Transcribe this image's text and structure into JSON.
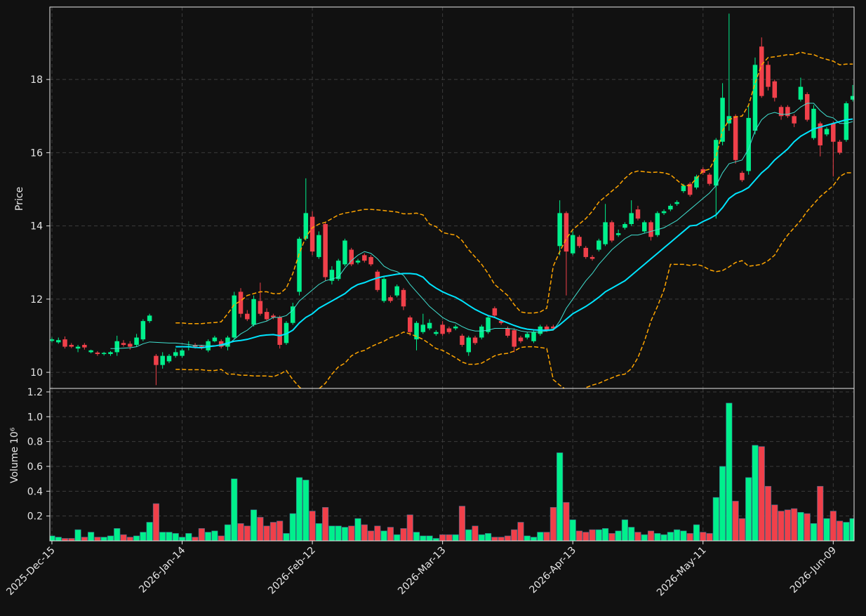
{
  "chart_data": {
    "type": "candlestick",
    "ylabel": "Price",
    "volume_label": "Volume",
    "volume_offset": "10⁶",
    "up_color": "#00f08c",
    "down_color": "#f0404a",
    "grid": true,
    "ylim": [
      9.56,
      19.98
    ],
    "yticks": [
      10,
      12,
      14,
      16,
      18
    ],
    "volume_ylim": [
      0,
      1.228
    ],
    "volume_yticks": [
      0.2,
      0.4,
      0.6,
      0.8,
      {
        "value": 1.0,
        "label": "1.0"
      },
      1.2
    ],
    "xlim": [
      -0.32,
      123.2
    ],
    "categories": [
      "2025-Dec-15",
      null,
      null,
      null,
      null,
      null,
      null,
      null,
      null,
      null,
      null,
      null,
      null,
      null,
      null,
      null,
      null,
      null,
      null,
      null,
      "2026-Jan-14",
      null,
      null,
      null,
      null,
      null,
      null,
      null,
      null,
      null,
      null,
      null,
      null,
      null,
      null,
      null,
      null,
      null,
      null,
      null,
      "2026-Feb-12",
      null,
      null,
      null,
      null,
      null,
      null,
      null,
      null,
      null,
      null,
      null,
      null,
      null,
      null,
      null,
      null,
      null,
      null,
      null,
      "2026-Mar-13",
      null,
      null,
      null,
      null,
      null,
      null,
      null,
      null,
      null,
      null,
      null,
      null,
      null,
      null,
      null,
      null,
      null,
      null,
      null,
      "2026-Apr-13",
      null,
      null,
      null,
      null,
      null,
      null,
      null,
      null,
      null,
      null,
      null,
      null,
      null,
      null,
      null,
      null,
      null,
      null,
      null,
      "2026-May-11",
      null,
      null,
      null,
      null,
      null,
      null,
      null,
      null,
      null,
      null,
      null,
      null,
      null,
      null,
      null,
      null,
      null,
      null,
      null,
      "2026-Jun-09",
      null,
      null,
      null
    ],
    "open": [
      10.86,
      10.82,
      10.9,
      10.75,
      10.65,
      10.75,
      10.55,
      10.54,
      10.5,
      10.5,
      10.55,
      10.8,
      10.78,
      10.75,
      10.9,
      11.4,
      10.45,
      10.2,
      10.3,
      10.45,
      10.45,
      10.68,
      10.75,
      10.72,
      10.6,
      10.85,
      10.85,
      10.7,
      10.95,
      12.2,
      11.6,
      11.3,
      11.95,
      11.65,
      11.55,
      11.5,
      10.8,
      11.35,
      12.2,
      13.65,
      14.25,
      13.15,
      14.05,
      12.5,
      12.55,
      12.95,
      13.35,
      13.0,
      13.2,
      13.15,
      12.75,
      11.95,
      12.05,
      12.1,
      12.25,
      11.5,
      10.9,
      11.1,
      11.2,
      11.05,
      11.3,
      11.2,
      11.2,
      11.0,
      10.55,
      10.95,
      10.95,
      11.1,
      11.75,
      11.4,
      11.2,
      11.15,
      10.95,
      10.95,
      10.85,
      11.05,
      11.25,
      11.25,
      13.45,
      14.35,
      13.25,
      13.7,
      13.4,
      13.15,
      13.35,
      13.5,
      14.1,
      13.75,
      13.95,
      14.05,
      14.45,
      13.85,
      14.1,
      13.75,
      14.35,
      14.45,
      14.6,
      14.95,
      15.15,
      15.05,
      15.55,
      15.4,
      15.1,
      16.3,
      16.8,
      17.0,
      15.45,
      15.5,
      16.6,
      18.9,
      18.4,
      17.95,
      17.25,
      17.25,
      17.0,
      17.45,
      17.6,
      16.4,
      16.8,
      16.5,
      16.8,
      16.3,
      16.35,
      17.45
    ],
    "high": [
      10.95,
      10.95,
      10.98,
      10.8,
      10.75,
      10.8,
      10.62,
      10.58,
      10.56,
      10.58,
      11.0,
      10.88,
      10.85,
      11.05,
      11.45,
      11.6,
      10.5,
      10.55,
      10.5,
      10.65,
      10.65,
      10.85,
      10.8,
      10.75,
      10.9,
      11.0,
      10.9,
      11.0,
      12.2,
      12.3,
      11.7,
      12.1,
      12.45,
      11.75,
      11.6,
      11.55,
      11.4,
      11.9,
      13.7,
      15.3,
      14.4,
      13.85,
      14.1,
      12.9,
      13.1,
      13.65,
      13.4,
      13.1,
      13.25,
      13.2,
      12.8,
      12.6,
      12.1,
      12.4,
      12.3,
      11.55,
      11.4,
      11.6,
      11.45,
      11.15,
      11.4,
      11.25,
      11.3,
      11.05,
      11.0,
      11.0,
      11.3,
      11.55,
      11.8,
      11.45,
      11.25,
      11.2,
      11.0,
      11.1,
      11.15,
      11.3,
      11.3,
      11.3,
      14.7,
      14.4,
      13.85,
      13.75,
      13.45,
      13.2,
      13.65,
      14.6,
      14.15,
      13.9,
      14.1,
      14.7,
      14.55,
      14.15,
      14.15,
      14.4,
      14.45,
      14.6,
      14.7,
      15.15,
      15.2,
      15.4,
      15.6,
      15.45,
      16.4,
      17.9,
      19.8,
      17.05,
      15.5,
      17.3,
      18.6,
      19.15,
      18.5,
      18.0,
      17.3,
      17.3,
      17.05,
      18.05,
      17.65,
      17.3,
      16.85,
      16.7,
      16.85,
      16.35,
      17.4,
      17.85
    ],
    "low": [
      10.82,
      10.78,
      10.65,
      10.66,
      10.55,
      10.62,
      10.52,
      10.45,
      10.46,
      10.45,
      10.45,
      10.7,
      10.62,
      10.7,
      10.85,
      11.35,
      9.65,
      10.1,
      10.25,
      10.4,
      10.4,
      10.6,
      10.65,
      10.62,
      10.55,
      10.82,
      10.65,
      10.6,
      10.9,
      11.5,
      11.4,
      11.25,
      11.55,
      11.4,
      11.45,
      10.65,
      10.75,
      11.3,
      12.1,
      13.6,
      13.2,
      13.1,
      12.5,
      12.4,
      12.5,
      12.9,
      12.9,
      12.95,
      13.0,
      12.9,
      12.2,
      11.9,
      11.9,
      12.05,
      11.7,
      11.0,
      10.6,
      11.05,
      11.15,
      11.0,
      11.0,
      11.05,
      11.15,
      10.7,
      10.45,
      10.75,
      10.9,
      11.05,
      11.5,
      11.3,
      10.95,
      10.55,
      10.8,
      10.9,
      10.8,
      11.0,
      11.1,
      11.15,
      13.2,
      12.1,
      13.2,
      13.4,
      13.1,
      13.05,
      13.3,
      13.45,
      13.55,
      13.7,
      13.9,
      14.0,
      14.15,
      13.8,
      13.6,
      13.7,
      14.3,
      14.4,
      14.55,
      14.9,
      14.8,
      15.0,
      15.4,
      15.1,
      14.2,
      16.2,
      16.6,
      15.7,
      15.2,
      15.4,
      16.5,
      17.5,
      17.7,
      17.4,
      16.9,
      16.95,
      16.7,
      17.4,
      16.85,
      16.35,
      15.9,
      16.45,
      15.35,
      15.95,
      16.3,
      17.4
    ],
    "close": [
      10.9,
      10.88,
      10.7,
      10.7,
      10.7,
      10.68,
      10.6,
      10.5,
      10.53,
      10.55,
      10.85,
      10.75,
      10.7,
      10.95,
      11.4,
      11.55,
      10.2,
      10.45,
      10.45,
      10.55,
      10.6,
      10.72,
      10.7,
      10.68,
      10.85,
      10.95,
      10.7,
      10.95,
      12.1,
      11.6,
      11.45,
      12.0,
      11.6,
      11.45,
      11.5,
      10.75,
      11.35,
      11.8,
      13.65,
      14.35,
      13.3,
      13.75,
      12.6,
      12.8,
      13.05,
      13.6,
      12.95,
      13.05,
      13.05,
      12.95,
      12.25,
      12.55,
      11.95,
      12.35,
      11.8,
      11.1,
      11.35,
      11.3,
      11.35,
      11.1,
      11.05,
      11.1,
      11.25,
      10.75,
      10.95,
      10.8,
      11.25,
      11.5,
      11.55,
      11.35,
      11.0,
      10.7,
      10.85,
      11.05,
      11.1,
      11.25,
      11.15,
      11.2,
      14.35,
      13.3,
      13.75,
      13.45,
      13.15,
      13.1,
      13.6,
      14.1,
      13.6,
      13.8,
      14.05,
      14.35,
      14.2,
      14.1,
      13.7,
      14.35,
      14.4,
      14.55,
      14.65,
      15.1,
      14.85,
      15.35,
      15.45,
      15.15,
      16.35,
      17.5,
      17.0,
      15.8,
      15.25,
      16.95,
      18.4,
      17.55,
      17.8,
      17.5,
      17.0,
      17.0,
      16.8,
      17.8,
      16.9,
      17.2,
      16.2,
      16.65,
      16.3,
      16.0,
      17.35,
      17.55
    ],
    "volume": [
      0.04,
      0.03,
      0.02,
      0.02,
      0.09,
      0.03,
      0.07,
      0.03,
      0.03,
      0.04,
      0.1,
      0.05,
      0.03,
      0.04,
      0.07,
      0.15,
      0.3,
      0.07,
      0.07,
      0.06,
      0.03,
      0.06,
      0.03,
      0.1,
      0.07,
      0.08,
      0.04,
      0.13,
      0.5,
      0.14,
      0.12,
      0.25,
      0.19,
      0.12,
      0.15,
      0.16,
      0.06,
      0.22,
      0.51,
      0.49,
      0.24,
      0.14,
      0.27,
      0.12,
      0.12,
      0.11,
      0.12,
      0.18,
      0.13,
      0.08,
      0.12,
      0.08,
      0.11,
      0.05,
      0.1,
      0.21,
      0.07,
      0.04,
      0.04,
      0.02,
      0.05,
      0.05,
      0.05,
      0.28,
      0.09,
      0.12,
      0.05,
      0.06,
      0.03,
      0.03,
      0.04,
      0.09,
      0.15,
      0.04,
      0.03,
      0.07,
      0.07,
      0.27,
      0.71,
      0.31,
      0.17,
      0.08,
      0.07,
      0.09,
      0.09,
      0.1,
      0.06,
      0.08,
      0.17,
      0.11,
      0.07,
      0.05,
      0.08,
      0.06,
      0.05,
      0.07,
      0.09,
      0.08,
      0.06,
      0.13,
      0.07,
      0.06,
      0.35,
      0.6,
      1.11,
      0.32,
      0.18,
      0.51,
      0.77,
      0.76,
      0.44,
      0.29,
      0.24,
      0.25,
      0.26,
      0.23,
      0.22,
      0.14,
      0.44,
      0.18,
      0.24,
      0.16,
      0.15,
      0.18
    ],
    "lines": [
      {
        "color": "#40e0d0",
        "width": 1,
        "dash": false,
        "values": [
          null,
          null,
          null,
          null,
          null,
          null,
          null,
          null,
          null,
          10.65,
          10.65,
          10.66,
          10.67,
          10.7,
          10.78,
          10.83,
          10.82,
          10.81,
          10.8,
          10.8,
          10.78,
          10.76,
          10.73,
          10.74,
          10.72,
          10.73,
          10.73,
          10.76,
          10.9,
          11.05,
          11.15,
          11.3,
          11.35,
          11.4,
          11.5,
          11.5,
          11.55,
          11.7,
          11.95,
          12.1,
          12.25,
          12.4,
          12.5,
          12.55,
          12.6,
          12.85,
          13.05,
          13.2,
          13.3,
          13.25,
          13.1,
          12.9,
          12.8,
          12.75,
          12.65,
          12.4,
          12.2,
          12.0,
          11.8,
          11.65,
          11.5,
          11.4,
          11.35,
          11.25,
          11.17,
          11.13,
          11.13,
          11.15,
          11.2,
          11.2,
          11.2,
          11.18,
          11.13,
          11.1,
          11.1,
          11.1,
          11.13,
          11.15,
          11.4,
          11.75,
          12.0,
          12.25,
          12.5,
          12.7,
          12.95,
          13.15,
          13.35,
          13.5,
          13.65,
          13.75,
          13.75,
          13.8,
          13.85,
          13.9,
          13.95,
          14.05,
          14.15,
          14.3,
          14.45,
          14.6,
          14.75,
          14.9,
          15.1,
          15.45,
          15.7,
          15.75,
          15.8,
          16.1,
          16.6,
          16.9,
          17.05,
          17.1,
          17.05,
          17.05,
          17.1,
          17.25,
          17.35,
          17.35,
          17.15,
          17.0,
          16.95,
          16.8,
          16.8,
          16.85
        ]
      },
      {
        "color": "#00e5ff",
        "width": 2,
        "dash": false,
        "values": [
          null,
          null,
          null,
          null,
          null,
          null,
          null,
          null,
          null,
          null,
          null,
          null,
          null,
          null,
          null,
          null,
          null,
          null,
          null,
          10.7,
          10.7,
          10.7,
          10.68,
          10.67,
          10.7,
          10.72,
          10.75,
          10.8,
          10.85,
          10.87,
          10.9,
          10.95,
          11.0,
          11.02,
          11.03,
          11.0,
          11.05,
          11.15,
          11.35,
          11.5,
          11.6,
          11.75,
          11.85,
          11.95,
          12.05,
          12.15,
          12.3,
          12.4,
          12.45,
          12.52,
          12.58,
          12.62,
          12.65,
          12.68,
          12.7,
          12.7,
          12.68,
          12.6,
          12.42,
          12.3,
          12.2,
          12.12,
          12.05,
          11.95,
          11.83,
          11.72,
          11.63,
          11.55,
          11.5,
          11.42,
          11.35,
          11.28,
          11.22,
          11.18,
          11.16,
          11.15,
          11.15,
          11.17,
          11.3,
          11.45,
          11.6,
          11.7,
          11.8,
          11.92,
          12.05,
          12.2,
          12.3,
          12.4,
          12.5,
          12.65,
          12.8,
          12.95,
          13.1,
          13.25,
          13.4,
          13.55,
          13.7,
          13.85,
          14.0,
          14.02,
          14.12,
          14.2,
          14.3,
          14.5,
          14.75,
          14.88,
          14.95,
          15.05,
          15.25,
          15.45,
          15.6,
          15.8,
          15.95,
          16.1,
          16.3,
          16.45,
          16.55,
          16.65,
          16.7,
          16.75,
          16.8,
          16.85,
          16.9,
          16.92
        ]
      },
      {
        "color": "#ffa500",
        "width": 1.5,
        "dash": true,
        "values": [
          null,
          null,
          null,
          null,
          null,
          null,
          null,
          null,
          null,
          null,
          null,
          null,
          null,
          null,
          null,
          null,
          null,
          null,
          null,
          11.35,
          11.35,
          11.33,
          11.33,
          11.33,
          11.35,
          11.36,
          11.38,
          11.6,
          11.85,
          11.95,
          12.1,
          12.15,
          12.2,
          12.2,
          12.15,
          12.15,
          12.3,
          12.7,
          13.25,
          13.7,
          13.95,
          14.05,
          14.1,
          14.2,
          14.3,
          14.35,
          14.38,
          14.42,
          14.45,
          14.45,
          14.44,
          14.42,
          14.4,
          14.38,
          14.33,
          14.33,
          14.35,
          14.3,
          14.05,
          13.98,
          13.82,
          13.78,
          13.75,
          13.6,
          13.35,
          13.15,
          12.95,
          12.7,
          12.4,
          12.25,
          12.1,
          11.85,
          11.65,
          11.62,
          11.62,
          11.65,
          11.75,
          12.9,
          13.3,
          13.65,
          13.9,
          14.05,
          14.2,
          14.4,
          14.65,
          14.8,
          14.95,
          15.1,
          15.3,
          15.45,
          15.5,
          15.48,
          15.46,
          15.47,
          15.45,
          15.4,
          15.25,
          15.1,
          15.1,
          15.3,
          15.5,
          15.55,
          15.9,
          16.6,
          16.9,
          16.98,
          17.0,
          17.3,
          17.9,
          18.4,
          18.6,
          18.62,
          18.65,
          18.68,
          18.68,
          18.75,
          18.7,
          18.68,
          18.6,
          18.55,
          18.5,
          18.4,
          18.42,
          18.42
        ]
      },
      {
        "color": "#ffa500",
        "width": 1.5,
        "dash": true,
        "values": [
          null,
          null,
          null,
          null,
          null,
          null,
          null,
          null,
          null,
          null,
          null,
          null,
          null,
          null,
          null,
          null,
          null,
          null,
          null,
          10.08,
          10.08,
          10.07,
          10.07,
          10.07,
          10.05,
          10.05,
          10.08,
          9.95,
          9.95,
          9.92,
          9.92,
          9.9,
          9.9,
          9.9,
          9.88,
          9.95,
          10.05,
          9.8,
          9.6,
          9.45,
          9.45,
          9.55,
          9.7,
          9.95,
          10.15,
          10.25,
          10.45,
          10.55,
          10.6,
          10.7,
          10.78,
          10.85,
          10.95,
          11.0,
          11.1,
          11.05,
          10.98,
          10.9,
          10.78,
          10.65,
          10.6,
          10.5,
          10.4,
          10.28,
          10.22,
          10.22,
          10.25,
          10.35,
          10.45,
          10.5,
          10.52,
          10.58,
          10.68,
          10.7,
          10.7,
          10.68,
          10.65,
          9.8,
          9.65,
          9.52,
          9.48,
          9.5,
          9.58,
          9.65,
          9.7,
          9.78,
          9.85,
          9.92,
          9.95,
          10.1,
          10.4,
          10.85,
          11.4,
          11.8,
          12.25,
          12.95,
          12.95,
          12.95,
          12.92,
          12.95,
          12.9,
          12.8,
          12.75,
          12.78,
          12.88,
          13.0,
          13.05,
          12.9,
          12.92,
          12.95,
          13.05,
          13.2,
          13.5,
          13.75,
          13.95,
          14.15,
          14.4,
          14.6,
          14.8,
          14.95,
          15.1,
          15.35,
          15.45,
          15.45
        ]
      }
    ]
  }
}
